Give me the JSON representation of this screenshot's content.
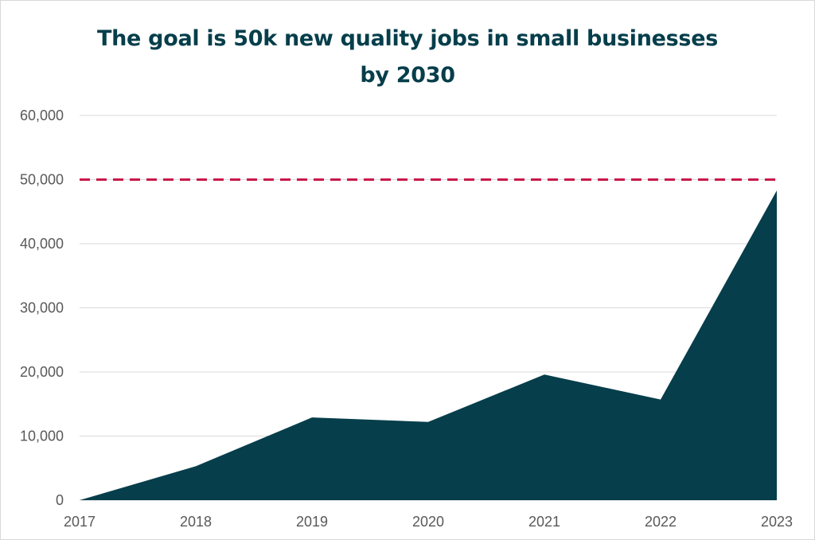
{
  "chart_data": {
    "type": "area",
    "title": "The goal is 50k new quality jobs in small businesses by 2030",
    "xlabel": "",
    "ylabel": "",
    "x": [
      "2017",
      "2018",
      "2019",
      "2020",
      "2021",
      "2022",
      "2023"
    ],
    "series": [
      {
        "values": [
          0,
          5300,
          12900,
          12200,
          19600,
          15700,
          48300
        ],
        "color": "#063e4b"
      }
    ],
    "target_line": {
      "value": 50000,
      "color": "#c9184a",
      "style": "dashed"
    },
    "ylim": [
      0,
      60000
    ],
    "yticks": [
      0,
      10000,
      20000,
      30000,
      40000,
      50000,
      60000
    ],
    "ytick_labels": [
      "0",
      "10,000",
      "20,000",
      "30,000",
      "40,000",
      "50,000",
      "60,000"
    ],
    "grid": true,
    "legend": "none"
  }
}
